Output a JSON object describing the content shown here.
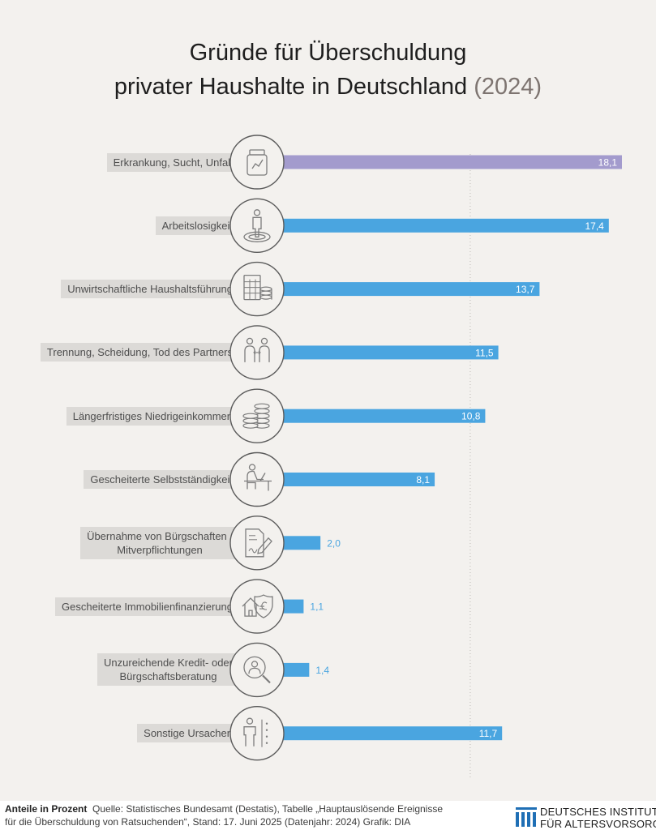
{
  "title": {
    "line1": "Gründe für Überschuldung",
    "line2": "privater Haushalte in Deutschland",
    "year": "(2024)"
  },
  "chart_data": {
    "type": "bar",
    "orientation": "horizontal",
    "categories": [
      "Erkrankung, Sucht, Unfall",
      "Arbeitslosigkeit",
      "Unwirtschaftliche Haushaltsführung",
      "Trennung, Scheidung, Tod des Partners",
      "Längerfristiges Niedrigeinkommen",
      "Gescheiterte Selbstständigkeit",
      "Übernahme von Bürgschaften / Mitverpflichtungen",
      "Gescheiterte Immobilienfinanzierung",
      "Unzureichende Kredit- oder Bürgschaftsberatung",
      "Sonstige Ursachen"
    ],
    "label_lines": [
      [
        "Erkrankung, Sucht, Unfall"
      ],
      [
        "Arbeitslosigkeit"
      ],
      [
        "Unwirtschaftliche Haushaltsführung"
      ],
      [
        "Trennung, Scheidung, Tod des Partners"
      ],
      [
        "Längerfristiges Niedrigeinkommen"
      ],
      [
        "Gescheiterte Selbstständigkeit"
      ],
      [
        "Übernahme von Bürgschaften /",
        "Mitverpflichtungen"
      ],
      [
        "Gescheiterte Immobilienfinanzierung"
      ],
      [
        "Unzureichende Kredit- oder",
        "Bürgschaftsberatung"
      ],
      [
        "Sonstige Ursachen"
      ]
    ],
    "values": [
      18.1,
      17.4,
      13.7,
      11.5,
      10.8,
      8.1,
      2.0,
      1.1,
      1.4,
      11.7
    ],
    "value_labels": [
      "18,1",
      "17,4",
      "13,7",
      "11,5",
      "10,8",
      "8,1",
      "2,0",
      "1,1",
      "1,4",
      "11,7"
    ],
    "icons": [
      "medicine-bottle-icon",
      "person-standing-icon",
      "calculator-coins-icon",
      "couple-separation-icon",
      "coin-stack-icon",
      "person-at-laptop-icon",
      "contract-signature-icon",
      "house-euro-shield-icon",
      "magnifier-person-icon",
      "person-dots-icon"
    ],
    "highlight_index": 0,
    "reference_value": 10,
    "xlim": [
      0,
      18.1
    ],
    "colors": {
      "highlight": "#a39bcd",
      "bar": "#4aa5e0",
      "outside_label": "#4aa5e0",
      "reference_line": "#bdbab6"
    }
  },
  "footer": {
    "units_label": "Anteile in Prozent",
    "source_line1": "Quelle: Statistisches Bundesamt (Destatis), Tabelle „Hauptauslösende Ereignisse",
    "source_line2": "für die Überschuldung von Ratsuchenden“, Stand: 17. Juni 2025 (Datenjahr: 2024)  Grafik: DIA",
    "logo_line1": "DEUTSCHES INSTITUT",
    "logo_line2": "FÜR ALTERSVORSORGE",
    "logo_color": "#1f6fb5"
  }
}
